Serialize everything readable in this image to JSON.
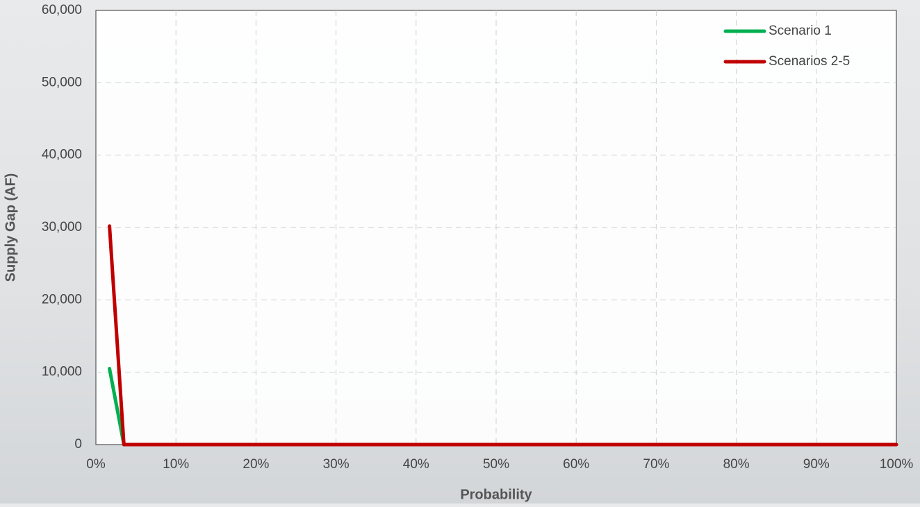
{
  "chart_data": {
    "type": "line",
    "x_label": "Probability",
    "y_label": "Supply Gap (AF)",
    "x": [
      1.7,
      3.5,
      100
    ],
    "series": [
      {
        "name": "Scenario 1",
        "color": "#00b050",
        "values": [
          10500,
          0,
          0
        ]
      },
      {
        "name": "Scenarios 2-5",
        "color": "#c00000",
        "values": [
          30200,
          0,
          0
        ]
      }
    ],
    "xlim": [
      0,
      100
    ],
    "xticks": [
      {
        "value": 0,
        "label": "0%"
      },
      {
        "value": 10,
        "label": "10%"
      },
      {
        "value": 20,
        "label": "20%"
      },
      {
        "value": 30,
        "label": "30%"
      },
      {
        "value": 40,
        "label": "40%"
      },
      {
        "value": 50,
        "label": "50%"
      },
      {
        "value": 60,
        "label": "60%"
      },
      {
        "value": 70,
        "label": "70%"
      },
      {
        "value": 80,
        "label": "80%"
      },
      {
        "value": 90,
        "label": "90%"
      },
      {
        "value": 100,
        "label": "100%"
      }
    ],
    "ylim": [
      0,
      60000
    ],
    "yticks": [
      0,
      {
        "value": 10000,
        "label": "10,000"
      },
      {
        "value": 20000,
        "label": "20,000"
      },
      {
        "value": 30000,
        "label": "30,000"
      },
      {
        "value": 40000,
        "label": "40,000"
      },
      {
        "value": 50000,
        "label": "50,000"
      },
      {
        "value": 60000,
        "label": "60,000"
      }
    ],
    "grid": true,
    "legend": "upper right"
  }
}
